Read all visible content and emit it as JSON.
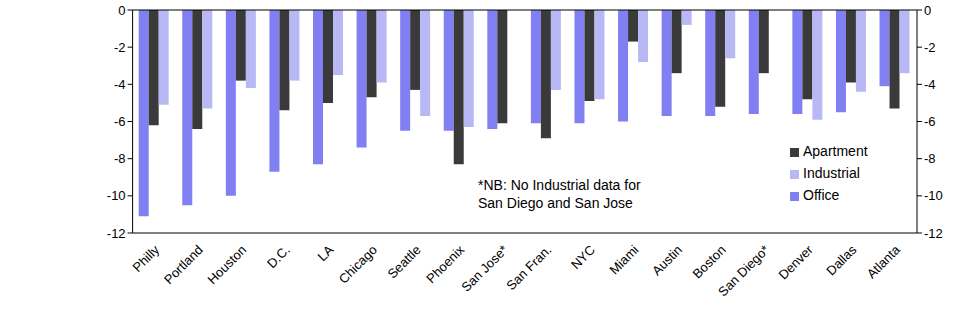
{
  "chart_data": {
    "type": "bar",
    "categories": [
      "Philly",
      "Portland",
      "Houston",
      "D.C.",
      "LA",
      "Chicago",
      "Seattle",
      "Phoenix",
      "San Jose*",
      "San Fran.",
      "NYC",
      "Miami",
      "Austin",
      "Boston",
      "San Diego*",
      "Denver",
      "Dallas",
      "Atlanta"
    ],
    "series": [
      {
        "name": "Office",
        "color": "#8080f2",
        "values": [
          -11.1,
          -10.5,
          -10.0,
          -8.7,
          -8.3,
          -7.4,
          -6.5,
          -6.5,
          -6.4,
          -6.1,
          -6.1,
          -6.0,
          -5.7,
          -5.7,
          -5.6,
          -5.6,
          -5.5,
          -4.1
        ]
      },
      {
        "name": "Apartment",
        "color": "#3a3a3a",
        "values": [
          -6.2,
          -6.4,
          -3.8,
          -5.4,
          -5.0,
          -4.7,
          -4.3,
          -8.3,
          -6.1,
          -6.9,
          -4.9,
          -1.7,
          -3.4,
          -5.2,
          -3.4,
          -4.8,
          -3.9,
          -5.3
        ]
      },
      {
        "name": "Industrial",
        "color": "#b8b8f5",
        "values": [
          -5.1,
          -5.3,
          -4.2,
          -3.8,
          -3.5,
          -3.9,
          -5.7,
          -6.3,
          null,
          -4.3,
          -4.8,
          -2.8,
          -0.8,
          -2.6,
          null,
          -5.9,
          -4.4,
          -3.4
        ]
      }
    ],
    "ylim": [
      -12,
      0
    ],
    "yticks": [
      -12,
      -10,
      -8,
      -6,
      -4,
      -2,
      0
    ],
    "annotation": "*NB: No Industrial data for San Diego and San Jose",
    "legend": "lower right"
  }
}
